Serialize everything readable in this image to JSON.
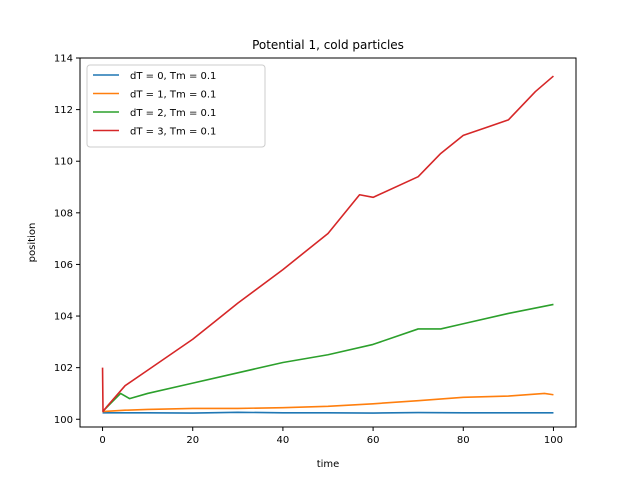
{
  "chart_data": {
    "type": "line",
    "title": "Potential 1, cold particles",
    "xlabel": "time",
    "ylabel": "position",
    "xlim": [
      -5,
      105
    ],
    "ylim": [
      99.7,
      114.0
    ],
    "xticks": [
      0,
      20,
      40,
      60,
      80,
      100
    ],
    "yticks": [
      100,
      102,
      104,
      106,
      108,
      110,
      112,
      114
    ],
    "grid": false,
    "legend_position": "top-left",
    "series": [
      {
        "name": "dT = 0, Tm = 0.1",
        "color": "#1f77b4",
        "x": [
          0,
          10,
          20,
          30,
          40,
          50,
          60,
          70,
          80,
          90,
          100
        ],
        "y": [
          100.25,
          100.25,
          100.24,
          100.27,
          100.25,
          100.25,
          100.24,
          100.26,
          100.25,
          100.25,
          100.25
        ]
      },
      {
        "name": "dT = 1, Tm = 0.1",
        "color": "#ff7f0e",
        "x": [
          0,
          5,
          10,
          20,
          30,
          40,
          50,
          60,
          70,
          80,
          90,
          98,
          100
        ],
        "y": [
          100.3,
          100.35,
          100.38,
          100.42,
          100.42,
          100.45,
          100.5,
          100.6,
          100.72,
          100.85,
          100.9,
          101.0,
          100.95
        ]
      },
      {
        "name": "dT = 2, Tm = 0.1",
        "color": "#2ca02c",
        "x": [
          0,
          2,
          4,
          6,
          10,
          20,
          30,
          40,
          50,
          60,
          70,
          75,
          80,
          90,
          100
        ],
        "y": [
          100.3,
          100.65,
          101.0,
          100.8,
          101.0,
          101.4,
          101.8,
          102.2,
          102.5,
          102.9,
          103.5,
          103.5,
          103.7,
          104.1,
          104.45
        ]
      },
      {
        "name": "dT = 3, Tm = 0.1",
        "color": "#d62728",
        "x": [
          0,
          0.1,
          1,
          5,
          10,
          20,
          25,
          30,
          40,
          50,
          57,
          60,
          70,
          75,
          80,
          90,
          96,
          100
        ],
        "y": [
          102.0,
          100.3,
          100.5,
          101.3,
          101.9,
          103.1,
          103.8,
          104.5,
          105.8,
          107.2,
          108.7,
          108.6,
          109.4,
          110.3,
          111.0,
          111.6,
          112.7,
          113.3
        ]
      }
    ]
  }
}
